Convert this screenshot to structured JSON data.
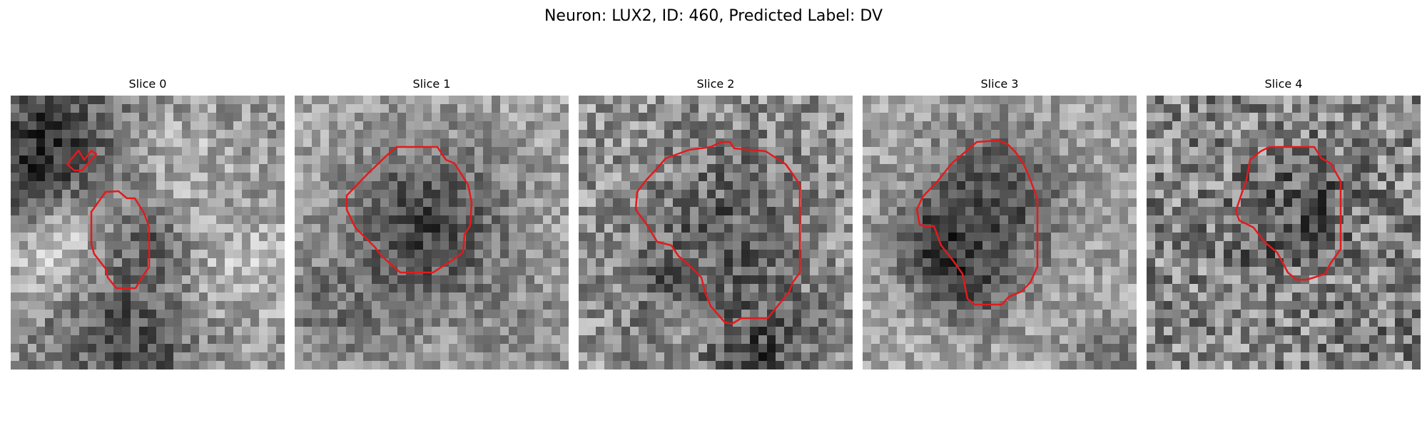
{
  "figure": {
    "title": "Neuron: LUX2, ID: 460, Predicted Label: DV"
  },
  "contour_color": "#e31a1c",
  "colormap": "gray",
  "slices": [
    {
      "label": "Slice 0"
    },
    {
      "label": "Slice 1"
    },
    {
      "label": "Slice 2"
    },
    {
      "label": "Slice 3"
    },
    {
      "label": "Slice 4"
    }
  ]
}
